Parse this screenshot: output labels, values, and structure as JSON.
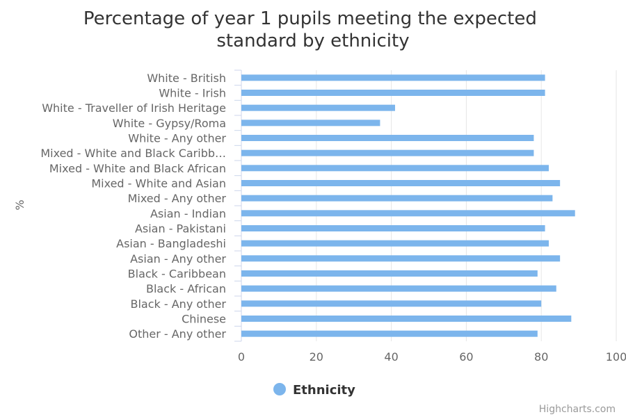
{
  "chart_data": {
    "type": "bar",
    "orientation": "horizontal",
    "title": "Percentage of year 1 pupils meeting the expected standard by ethnicity",
    "title_lines": [
      "Percentage of year 1 pupils meeting the expected",
      "standard by ethnicity"
    ],
    "ylabel": "%",
    "xlim": [
      0,
      100
    ],
    "ticks": [
      0,
      20,
      40,
      60,
      80,
      100
    ],
    "grid": true,
    "legend": "bottom-center",
    "categories": [
      "White - British",
      "White - Irish",
      "White - Traveller of Irish Heritage",
      "White - Gypsy/Roma",
      "White - Any other",
      "Mixed - White and Black Caribb…",
      "Mixed - White and Black African",
      "Mixed - White and Asian",
      "Mixed - Any other",
      "Asian - Indian",
      "Asian - Pakistani",
      "Asian - Bangladeshi",
      "Asian - Any other",
      "Black - Caribbean",
      "Black - African",
      "Black - Any other",
      "Chinese",
      "Other - Any other"
    ],
    "series": [
      {
        "name": "Ethnicity",
        "color": "#7cb5ec",
        "values": [
          81,
          81,
          41,
          37,
          78,
          78,
          82,
          85,
          83,
          89,
          81,
          82,
          85,
          79,
          84,
          80,
          88,
          79
        ]
      }
    ]
  },
  "credits": "Highcharts.com"
}
